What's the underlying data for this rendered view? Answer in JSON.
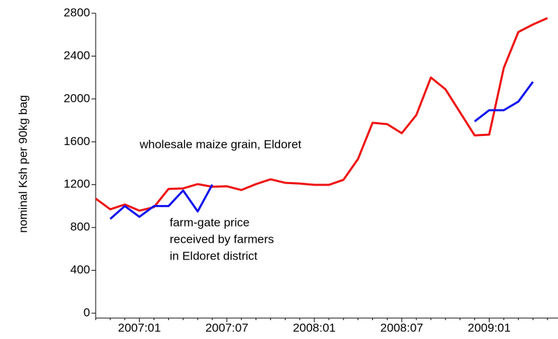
{
  "chart_data": {
    "type": "line",
    "y_label": "nominal Ksh per 90kg bag",
    "categories": [
      null,
      null,
      null,
      "2007:01",
      null,
      null,
      null,
      null,
      null,
      "2007:07",
      null,
      null,
      null,
      null,
      null,
      "2008:01",
      null,
      null,
      null,
      null,
      null,
      "2008:07",
      null,
      null,
      null,
      null,
      null,
      "2009:01",
      null,
      null,
      null,
      null
    ],
    "series": [
      {
        "color": "#ee1111",
        "values": [
          1070,
          970,
          1015,
          957,
          990,
          1160,
          1165,
          1205,
          1180,
          1185,
          1150,
          1205,
          1250,
          1217,
          1210,
          1198,
          1198,
          1245,
          1440,
          1778,
          1765,
          1680,
          1850,
          2200,
          2090,
          1875,
          1660,
          1667,
          2290,
          2625,
          2695,
          2755
        ]
      },
      {
        "color": "#1111ee",
        "values": [
          null,
          880,
          1000,
          900,
          1000,
          1000,
          1145,
          950,
          1200,
          null,
          null,
          null,
          null,
          null,
          null,
          null,
          null,
          null,
          null,
          null,
          null,
          null,
          null,
          null,
          null,
          null,
          1790,
          1895,
          1895,
          1975,
          2160,
          null
        ]
      }
    ],
    "annotations": [
      "wholesale maize grain, Eldoret",
      "farm-gate price",
      "received by farmers",
      "in Eldoret district"
    ],
    "ylim": [
      0,
      2800
    ],
    "yticks": [
      0,
      400,
      800,
      1200,
      1600,
      2000,
      2400,
      2800
    ]
  }
}
